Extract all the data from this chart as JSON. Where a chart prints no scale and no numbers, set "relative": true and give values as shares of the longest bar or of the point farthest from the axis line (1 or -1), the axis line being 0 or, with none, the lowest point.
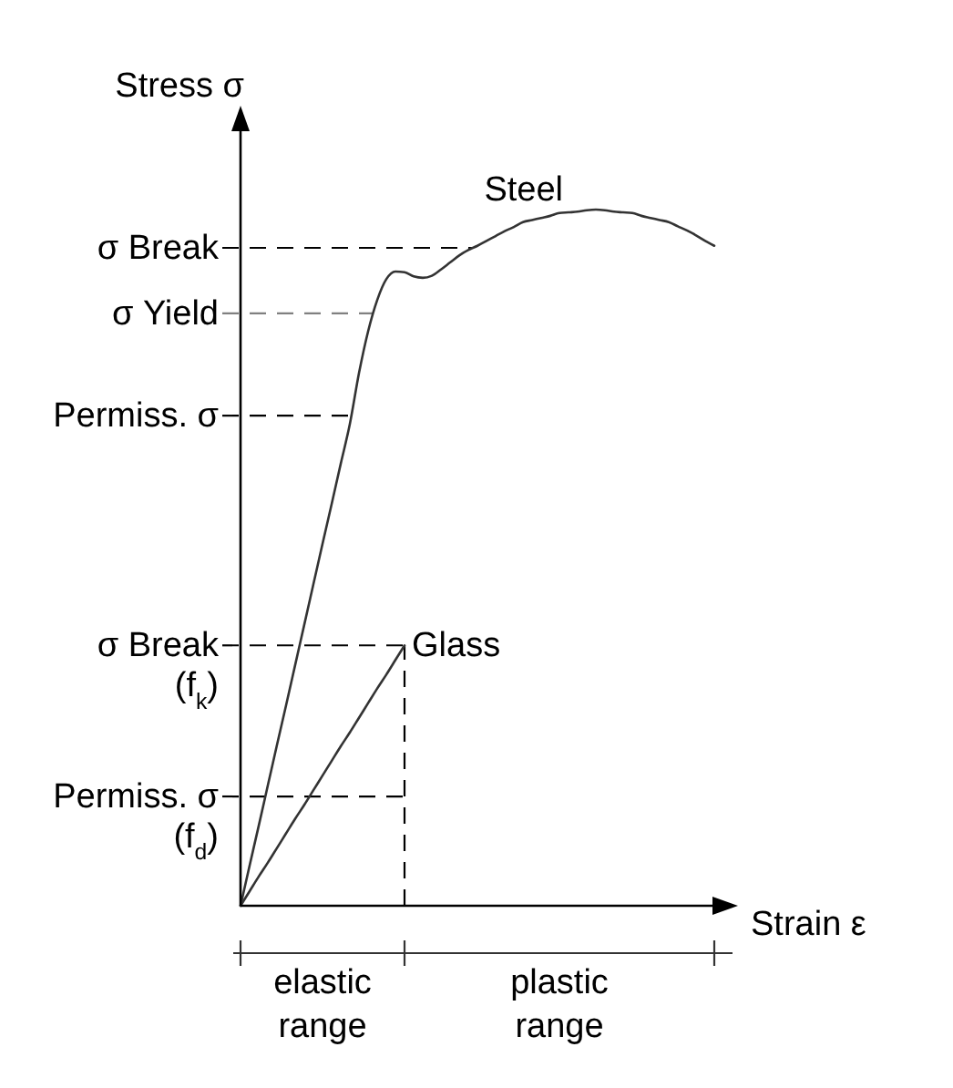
{
  "chart_data": {
    "type": "line",
    "relative": true,
    "xlabel": "Strain ε",
    "ylabel": "Stress σ",
    "categories": [
      null,
      null,
      null,
      null,
      null,
      null,
      null,
      null,
      null,
      null,
      null,
      null,
      null,
      null,
      null,
      null,
      null,
      null,
      null,
      null,
      null,
      null,
      null,
      null,
      null,
      null,
      null,
      null,
      null,
      null,
      null,
      null,
      null,
      null,
      null,
      null,
      null,
      null,
      null,
      null,
      null,
      null,
      null,
      null,
      null,
      null,
      null,
      null,
      null,
      null,
      null,
      null,
      null
    ],
    "series": [
      {
        "name": "Steel",
        "color": "#333333",
        "values": [
          0,
          0.058,
          0.115,
          0.173,
          0.231,
          0.288,
          0.346,
          0.404,
          0.462,
          0.52,
          0.577,
          0.635,
          0.692,
          0.765,
          0.825,
          0.87,
          0.9,
          0.911,
          0.91,
          0.904,
          0.902,
          0.905,
          0.914,
          0.924,
          0.934,
          0.942,
          0.948,
          0.955,
          0.962,
          0.969,
          0.975,
          0.982,
          0.985,
          0.988,
          0.991,
          0.995,
          0.996,
          0.997,
          0.999,
          1.0,
          0.999,
          0.997,
          0.996,
          0.995,
          0.991,
          0.988,
          0.985,
          0.982,
          0.976,
          0.97,
          0.963,
          0.955,
          0.948
        ]
      },
      {
        "name": "Glass",
        "color": "#333333",
        "values": [
          0,
          0.021,
          0.042,
          0.062,
          0.083,
          0.104,
          0.125,
          0.145,
          0.166,
          0.187,
          0.208,
          0.229,
          0.249,
          0.27,
          0.291,
          0.312,
          0.332,
          0.353,
          0.374,
          null,
          null,
          null,
          null,
          null,
          null,
          null,
          null,
          null,
          null,
          null,
          null,
          null,
          null,
          null,
          null,
          null,
          null,
          null,
          null,
          null,
          null,
          null,
          null,
          null,
          null,
          null,
          null,
          null,
          null,
          null,
          null,
          null,
          null
        ]
      }
    ],
    "ref_lines": [
      {
        "axis": "y",
        "value": 0.945,
        "label": "σ Break",
        "color": "#000000",
        "line_style": "dashed"
      },
      {
        "axis": "y",
        "value": 0.851,
        "label": "σ Yield",
        "color": "#808080",
        "line_style": "dashed"
      },
      {
        "axis": "y",
        "value": 0.704,
        "label": "Permiss. σ",
        "color": "#000000",
        "line_style": "dashed"
      },
      {
        "axis": "y",
        "value": 0.374,
        "label": "σ Break\n(f$_{k}$)",
        "color": "#000000",
        "line_style": "dashed"
      },
      {
        "axis": "y",
        "value": 0.157,
        "label": "Permiss. σ\n(f$_{d}$)",
        "color": "#000000",
        "line_style": "dashed"
      }
    ],
    "annotations": [
      "elastic range",
      "plastic range"
    ]
  }
}
